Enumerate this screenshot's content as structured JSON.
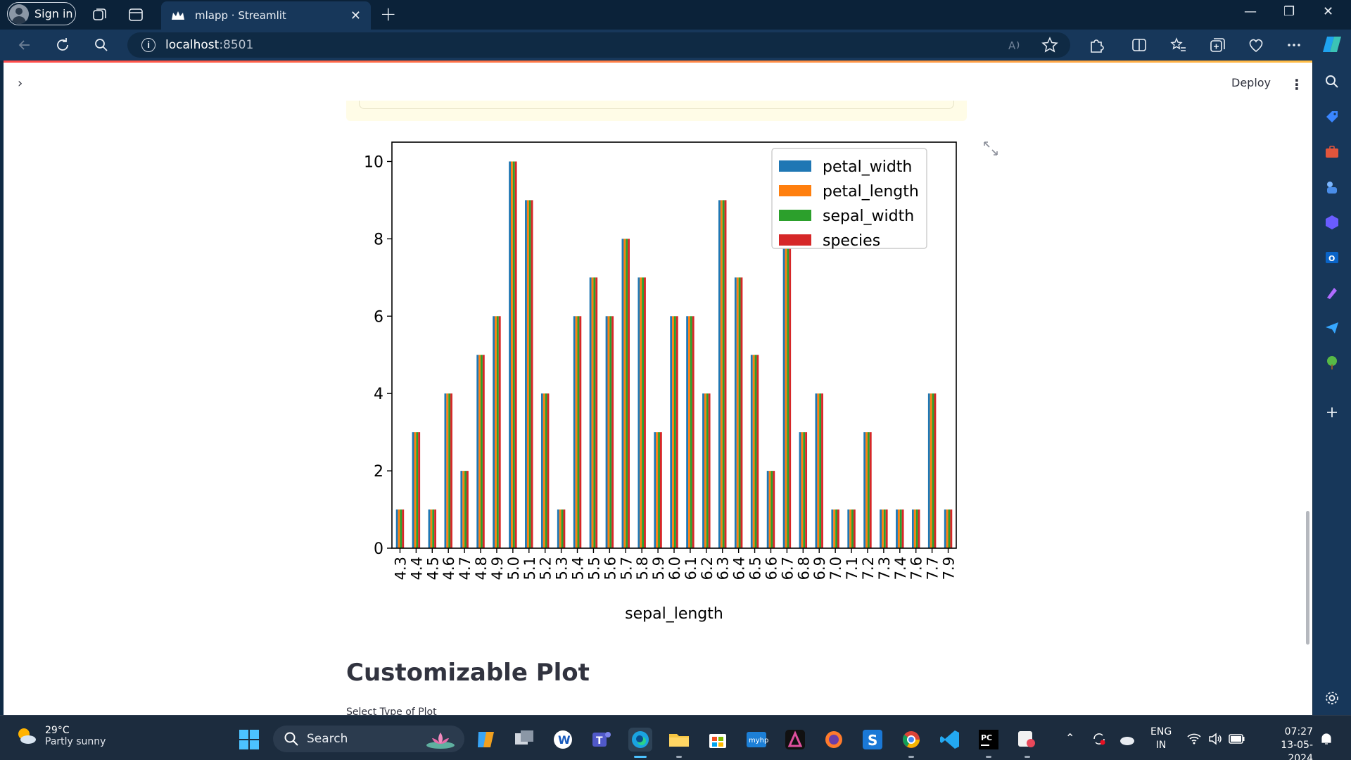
{
  "browser": {
    "signin_label": "Sign in",
    "tab_title": "mlapp · Streamlit",
    "tab_close": "✕",
    "new_tab": "+",
    "url_host": "localhost",
    "url_port": ":8501",
    "window_controls": {
      "minimize": "—",
      "restore": "❐",
      "close": "✕"
    }
  },
  "app": {
    "sidebar_toggle": "›",
    "deploy_label": "Deploy",
    "menu_label": "⋮",
    "section_title": "Customizable Plot",
    "select_label": "Select Type of Plot"
  },
  "chart_data": {
    "type": "bar",
    "xlabel": "sepal_length",
    "ylabel": "",
    "ylim": [
      0,
      10.5
    ],
    "yticks": [
      0,
      2,
      4,
      6,
      8,
      10
    ],
    "legend_position": "top-right",
    "categories": [
      "4.3",
      "4.4",
      "4.5",
      "4.6",
      "4.7",
      "4.8",
      "4.9",
      "5.0",
      "5.1",
      "5.2",
      "5.3",
      "5.4",
      "5.5",
      "5.6",
      "5.7",
      "5.8",
      "5.9",
      "6.0",
      "6.1",
      "6.2",
      "6.3",
      "6.4",
      "6.5",
      "6.6",
      "6.7",
      "6.8",
      "6.9",
      "7.0",
      "7.1",
      "7.2",
      "7.3",
      "7.4",
      "7.6",
      "7.7",
      "7.9"
    ],
    "series": [
      {
        "name": "petal_width",
        "color": "#1f77b4",
        "values": [
          1,
          3,
          1,
          4,
          2,
          5,
          6,
          10,
          9,
          4,
          1,
          6,
          7,
          6,
          8,
          7,
          3,
          6,
          6,
          4,
          9,
          7,
          5,
          2,
          8,
          3,
          4,
          1,
          1,
          3,
          1,
          1,
          1,
          4,
          1
        ]
      },
      {
        "name": "petal_length",
        "color": "#ff7f0e",
        "values": [
          1,
          3,
          1,
          4,
          2,
          5,
          6,
          10,
          9,
          4,
          1,
          6,
          7,
          6,
          8,
          7,
          3,
          6,
          6,
          4,
          9,
          7,
          5,
          2,
          8,
          3,
          4,
          1,
          1,
          3,
          1,
          1,
          1,
          4,
          1
        ]
      },
      {
        "name": "sepal_width",
        "color": "#2ca02c",
        "values": [
          1,
          3,
          1,
          4,
          2,
          5,
          6,
          10,
          9,
          4,
          1,
          6,
          7,
          6,
          8,
          7,
          3,
          6,
          6,
          4,
          9,
          7,
          5,
          2,
          8,
          3,
          4,
          1,
          1,
          3,
          1,
          1,
          1,
          4,
          1
        ]
      },
      {
        "name": "species",
        "color": "#d62728",
        "values": [
          1,
          3,
          1,
          4,
          2,
          5,
          6,
          10,
          9,
          4,
          1,
          6,
          7,
          6,
          8,
          7,
          3,
          6,
          6,
          4,
          9,
          7,
          5,
          2,
          8,
          3,
          4,
          1,
          1,
          3,
          1,
          1,
          1,
          4,
          1
        ]
      }
    ]
  },
  "taskbar": {
    "temperature": "29°C",
    "weather": "Partly sunny",
    "search_label": "Search",
    "lang_line1": "ENG",
    "lang_line2": "IN",
    "time": "07:27",
    "date": "13-05-2024"
  }
}
